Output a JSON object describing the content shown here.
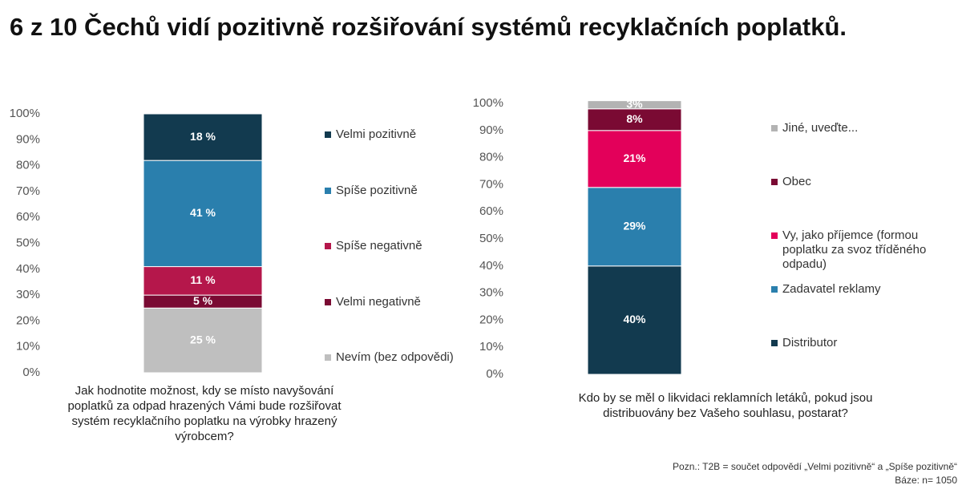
{
  "title": "6 z 10 Čechů vidí pozitivně rozšiřování systémů recyklačních poplatků.",
  "note": "Pozn.: T2B = součet odpovědí „Velmi pozitivně“ a „Spíše pozitivně“",
  "base": "Báze: n= 1050",
  "chart_data": [
    {
      "type": "stacked-bar",
      "categories": [
        "Jak hodnotite možnost, kdy se místo navyšování poplatků za odpad hrazených Vámi bude rozšiřovat systém recyklačního poplatku na výrobky hrazený výrobcem?"
      ],
      "ylim": [
        0,
        100
      ],
      "yticks": [
        {
          "value": 0,
          "label": "0%"
        },
        {
          "value": 10,
          "label": "10%"
        },
        {
          "value": 20,
          "label": "20%"
        },
        {
          "value": 30,
          "label": "30%"
        },
        {
          "value": 40,
          "label": "40%"
        },
        {
          "value": 50,
          "label": "50%"
        },
        {
          "value": 60,
          "label": "60%"
        },
        {
          "value": 70,
          "label": "70%"
        },
        {
          "value": 80,
          "label": "80%"
        },
        {
          "value": 90,
          "label": "90%"
        },
        {
          "value": 100,
          "label": "100%"
        }
      ],
      "series": [
        {
          "name": "Nevím (bez odpovědi)",
          "color": "#bfbfbf",
          "values": [
            25
          ],
          "value_labels": [
            "25 %"
          ]
        },
        {
          "name": "Velmi negativně",
          "color": "#7a0a33",
          "values": [
            5
          ],
          "value_labels": [
            "5 %"
          ]
        },
        {
          "name": "Spíše negativně",
          "color": "#b5174b",
          "values": [
            11
          ],
          "value_labels": [
            "11 %"
          ]
        },
        {
          "name": "Spíše pozitivně",
          "color": "#2a7fad",
          "values": [
            41
          ],
          "value_labels": [
            "41 %"
          ]
        },
        {
          "name": "Velmi pozitivně",
          "color": "#123a4f",
          "values": [
            18
          ],
          "value_labels": [
            "18 %"
          ]
        }
      ]
    },
    {
      "type": "stacked-bar",
      "categories": [
        "Kdo by se měl o likvidaci reklamních letáků, pokud jsou distribuovány bez Vašeho souhlasu, postarat?"
      ],
      "ylim": [
        0,
        100
      ],
      "yticks": [
        {
          "value": 0,
          "label": "0%"
        },
        {
          "value": 10,
          "label": "10%"
        },
        {
          "value": 20,
          "label": "20%"
        },
        {
          "value": 30,
          "label": "30%"
        },
        {
          "value": 40,
          "label": "40%"
        },
        {
          "value": 50,
          "label": "50%"
        },
        {
          "value": 60,
          "label": "60%"
        },
        {
          "value": 70,
          "label": "70%"
        },
        {
          "value": 80,
          "label": "80%"
        },
        {
          "value": 90,
          "label": "90%"
        },
        {
          "value": 100,
          "label": "100%"
        }
      ],
      "series": [
        {
          "name": "Distributor",
          "color": "#123a4f",
          "values": [
            40
          ],
          "value_labels": [
            "40%"
          ]
        },
        {
          "name": "Zadavatel reklamy",
          "color": "#2a7fad",
          "values": [
            29
          ],
          "value_labels": [
            "29%"
          ]
        },
        {
          "name": "Vy, jako příjemce (formou poplatku za svoz tříděného odpadu)",
          "color": "#e3005a",
          "values": [
            21
          ],
          "value_labels": [
            "21%"
          ]
        },
        {
          "name": "Obec",
          "color": "#7a0a33",
          "values": [
            8
          ],
          "value_labels": [
            "8%"
          ]
        },
        {
          "name": "Jiné, uveďte...",
          "color": "#b3b3b3",
          "values": [
            3
          ],
          "value_labels": [
            "3%"
          ]
        }
      ]
    }
  ]
}
